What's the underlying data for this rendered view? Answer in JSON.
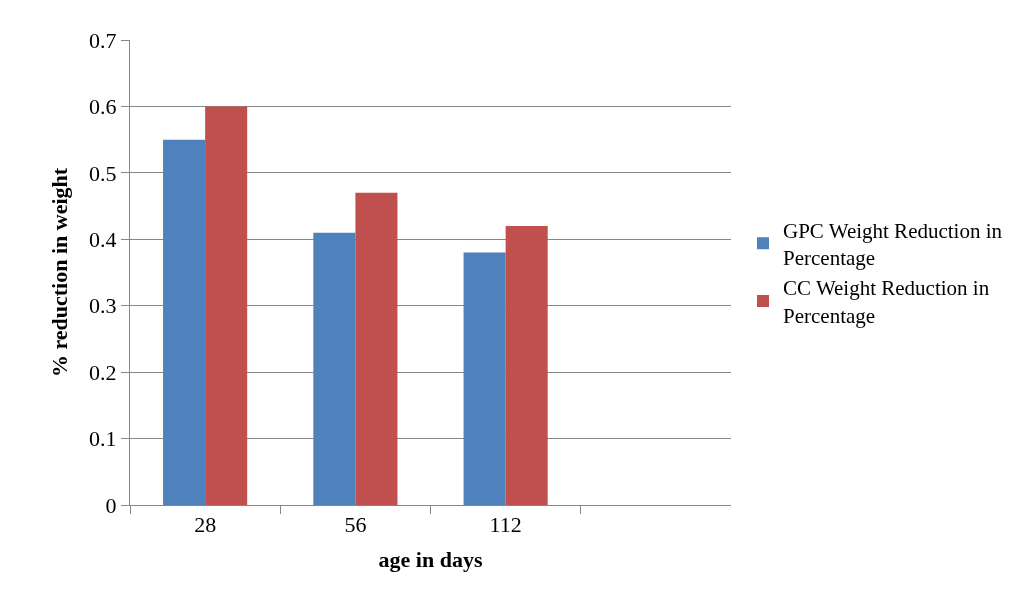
{
  "chart_data": {
    "type": "bar",
    "xlabel": "age in days",
    "ylabel": "% reduction in weight",
    "categories": [
      "28",
      "56",
      "112",
      null
    ],
    "series": [
      {
        "name": "GPC Weight Reduction in Percentage",
        "color": "#4f81bd",
        "values": [
          0.55,
          0.41,
          0.38,
          null
        ]
      },
      {
        "name": "CC Weight Reduction in Percentage",
        "color": "#c0504d",
        "values": [
          0.6,
          0.47,
          0.42,
          null
        ]
      }
    ],
    "ylim": [
      0,
      0.7
    ],
    "yticks": [
      0,
      0.1,
      0.2,
      0.3,
      0.4,
      0.5,
      0.6,
      0.7
    ],
    "grid": "y",
    "legend": "right"
  }
}
